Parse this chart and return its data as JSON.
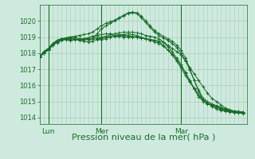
{
  "bg_color": "#ceeade",
  "grid_color": "#aaccbb",
  "line_color": "#1a6b2a",
  "marker_color": "#1a6b2a",
  "xlabel": "Pression niveau de la mer( hPa )",
  "xlabel_fontsize": 8,
  "ylabel_ticks": [
    1014,
    1015,
    1016,
    1017,
    1018,
    1019,
    1020
  ],
  "ylim": [
    1013.6,
    1021.0
  ],
  "xlim": [
    0,
    94
  ],
  "xtick_positions": [
    4,
    28,
    64
  ],
  "xtick_labels": [
    "Lun",
    "Mer",
    "Mar"
  ],
  "vline_positions": [
    4,
    28,
    64
  ],
  "series": [
    [
      1017.8,
      1018.1,
      1018.3,
      1018.6,
      1018.8,
      1018.9,
      1018.85,
      1018.8,
      1018.82,
      1018.85,
      1018.9,
      1018.95,
      1019.05,
      1019.1,
      1019.15,
      1019.2,
      1019.2,
      1019.1,
      1019.05,
      1019.0,
      1019.0,
      1019.0,
      1019.0,
      1018.95,
      1018.9,
      1018.85,
      1018.8,
      1018.75,
      1018.7,
      1018.5,
      1018.3,
      1018.1,
      1017.9,
      1017.5,
      1017.1,
      1016.7,
      1016.3,
      1015.9,
      1015.5,
      1015.2,
      1015.0,
      1014.8,
      1014.6,
      1014.5,
      1014.4,
      1014.35,
      1014.3
    ],
    [
      1017.8,
      1018.1,
      1018.3,
      1018.6,
      1018.8,
      1018.9,
      1018.85,
      1018.8,
      1018.82,
      1018.85,
      1018.9,
      1018.95,
      1019.05,
      1018.9,
      1018.85,
      1018.9,
      1019.0,
      1019.05,
      1019.1,
      1019.1,
      1019.1,
      1019.05,
      1019.0,
      1018.95,
      1018.9,
      1018.85,
      1018.8,
      1018.7,
      1018.5,
      1018.2,
      1017.9,
      1017.5,
      1017.1,
      1016.6,
      1016.2,
      1015.8,
      1015.4,
      1015.1,
      1014.9,
      1014.7,
      1014.55,
      1014.45,
      1014.4,
      1014.35,
      1014.3,
      1014.3,
      1014.25
    ],
    [
      1017.8,
      1018.05,
      1018.25,
      1018.55,
      1018.75,
      1018.9,
      1018.95,
      1019.0,
      1019.0,
      1018.9,
      1018.85,
      1018.85,
      1018.9,
      1018.95,
      1019.0,
      1019.05,
      1019.15,
      1019.2,
      1019.25,
      1019.3,
      1019.3,
      1019.3,
      1019.25,
      1019.2,
      1019.1,
      1019.05,
      1019.0,
      1018.9,
      1018.7,
      1018.4,
      1018.1,
      1017.7,
      1017.3,
      1016.8,
      1016.3,
      1015.8,
      1015.4,
      1015.1,
      1014.9,
      1014.7,
      1014.55,
      1014.5,
      1014.4,
      1014.4,
      1014.35,
      1014.3,
      1014.28
    ],
    [
      1017.75,
      1018.0,
      1018.2,
      1018.5,
      1018.7,
      1018.85,
      1018.95,
      1019.0,
      1019.05,
      1019.1,
      1019.15,
      1019.2,
      1019.3,
      1019.5,
      1019.7,
      1019.85,
      1019.95,
      1020.05,
      1020.2,
      1020.35,
      1020.5,
      1020.55,
      1020.5,
      1020.3,
      1020.0,
      1019.7,
      1019.4,
      1019.2,
      1019.05,
      1018.9,
      1018.75,
      1018.5,
      1018.2,
      1017.7,
      1017.0,
      1016.3,
      1015.6,
      1015.1,
      1014.9,
      1014.8,
      1014.7,
      1014.6,
      1014.5,
      1014.45,
      1014.4,
      1014.38,
      1014.35
    ],
    [
      1017.75,
      1018.0,
      1018.2,
      1018.5,
      1018.7,
      1018.85,
      1018.9,
      1018.95,
      1018.9,
      1018.85,
      1018.9,
      1018.85,
      1018.9,
      1019.2,
      1019.5,
      1019.7,
      1019.85,
      1020.0,
      1020.15,
      1020.3,
      1020.45,
      1020.5,
      1020.45,
      1020.2,
      1019.9,
      1019.6,
      1019.3,
      1019.1,
      1018.95,
      1018.8,
      1018.6,
      1018.35,
      1018.0,
      1017.55,
      1016.95,
      1016.3,
      1015.7,
      1015.2,
      1015.0,
      1014.85,
      1014.75,
      1014.65,
      1014.55,
      1014.45,
      1014.4,
      1014.38,
      1014.35
    ],
    [
      1017.75,
      1018.0,
      1018.2,
      1018.5,
      1018.65,
      1018.8,
      1018.85,
      1018.9,
      1018.85,
      1018.8,
      1018.75,
      1018.7,
      1018.75,
      1018.85,
      1018.95,
      1019.0,
      1019.05,
      1019.1,
      1019.15,
      1019.15,
      1019.2,
      1019.15,
      1019.1,
      1019.0,
      1018.9,
      1018.8,
      1018.7,
      1018.6,
      1018.45,
      1018.2,
      1017.95,
      1017.6,
      1017.2,
      1016.75,
      1016.25,
      1015.75,
      1015.3,
      1015.0,
      1014.85,
      1014.75,
      1014.65,
      1014.55,
      1014.45,
      1014.4,
      1014.35,
      1014.32,
      1014.3
    ]
  ]
}
